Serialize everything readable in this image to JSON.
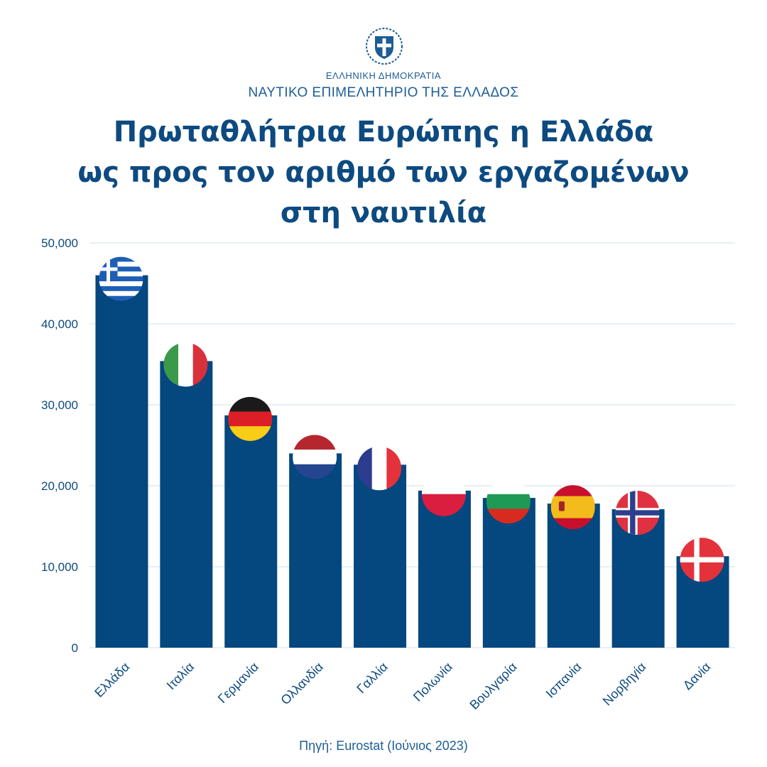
{
  "header": {
    "org_small": "ΕΛΛΗΝΙΚΗ ΔΗΜΟΚΡΑΤΙΑ",
    "org_big": "ΝΑΥΤΙΚΟ ΕΠΙΜΕΛΗΤΗΡΙΟ ΤΗΣ ΕΛΛΑΔΟΣ",
    "emblem": "greek-coat-of-arms-icon"
  },
  "title_lines": [
    "Πρωταθλήτρια Ευρώπης η Ελλάδα",
    "ως προς τον αριθμό των εργαζομένων",
    "στη ναυτιλία"
  ],
  "source": "Πηγή: Eurostat (Ιούνιος 2023)",
  "colors": {
    "bar": "#05477f",
    "text": "#0d4a80",
    "grid": "#cfe0ea"
  },
  "chart_data": {
    "type": "bar",
    "categories": [
      "Ελλάδα",
      "Ιταλία",
      "Γερμανία",
      "Ολλανδία",
      "Γαλλία",
      "Πολωνία",
      "Βουλγαρία",
      "Ισπανία",
      "Νορβηγία",
      "Δανία"
    ],
    "values": [
      46000,
      35400,
      28700,
      24000,
      22600,
      19400,
      18500,
      17800,
      17100,
      11300
    ],
    "flags": [
      "greece-flag-icon",
      "italy-flag-icon",
      "germany-flag-icon",
      "netherlands-flag-icon",
      "france-flag-icon",
      "poland-flag-icon",
      "bulgaria-flag-icon",
      "spain-flag-icon",
      "norway-flag-icon",
      "denmark-flag-icon"
    ],
    "ylim": [
      0,
      50000
    ],
    "yticks": [
      {
        "value": 0,
        "label": "0"
      },
      {
        "value": 10000,
        "label": "10,000"
      },
      {
        "value": 20000,
        "label": "20,000"
      },
      {
        "value": 30000,
        "label": "30,000"
      },
      {
        "value": 40000,
        "label": "40,000"
      },
      {
        "value": 50000,
        "label": "50,000"
      }
    ],
    "grid": true,
    "title": "",
    "xlabel": "",
    "ylabel": ""
  }
}
